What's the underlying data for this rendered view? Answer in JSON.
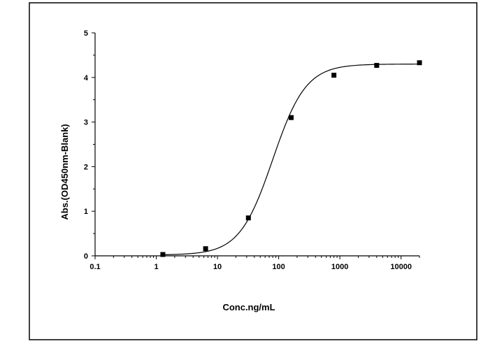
{
  "chart_data": {
    "type": "scatter",
    "xlabel": "Conc.ng/mL",
    "ylabel": "Abs.(OD450nm-Blank)",
    "xscale": "log",
    "xlim": [
      0.1,
      20000
    ],
    "ylim": [
      0,
      5
    ],
    "xticks": [
      0.1,
      1,
      10,
      100,
      1000,
      10000
    ],
    "xtick_labels": [
      "0.1",
      "1",
      "10",
      "100",
      "1000",
      "10000"
    ],
    "yticks": [
      0,
      1,
      2,
      3,
      4,
      5
    ],
    "ytick_labels": [
      "0",
      "1",
      "2",
      "3",
      "4",
      "5"
    ],
    "grid": false,
    "legend": "none",
    "points": {
      "x": [
        1.28,
        6.4,
        32,
        160,
        800,
        4000,
        20000
      ],
      "y": [
        0.03,
        0.16,
        0.85,
        3.1,
        4.05,
        4.27,
        4.33
      ]
    },
    "fit": {
      "model": "4PL",
      "bottom": 0.02,
      "top": 4.3,
      "ec50": 80,
      "hill": 1.6
    },
    "marker_color": "#000000",
    "line_color": "#000000"
  }
}
